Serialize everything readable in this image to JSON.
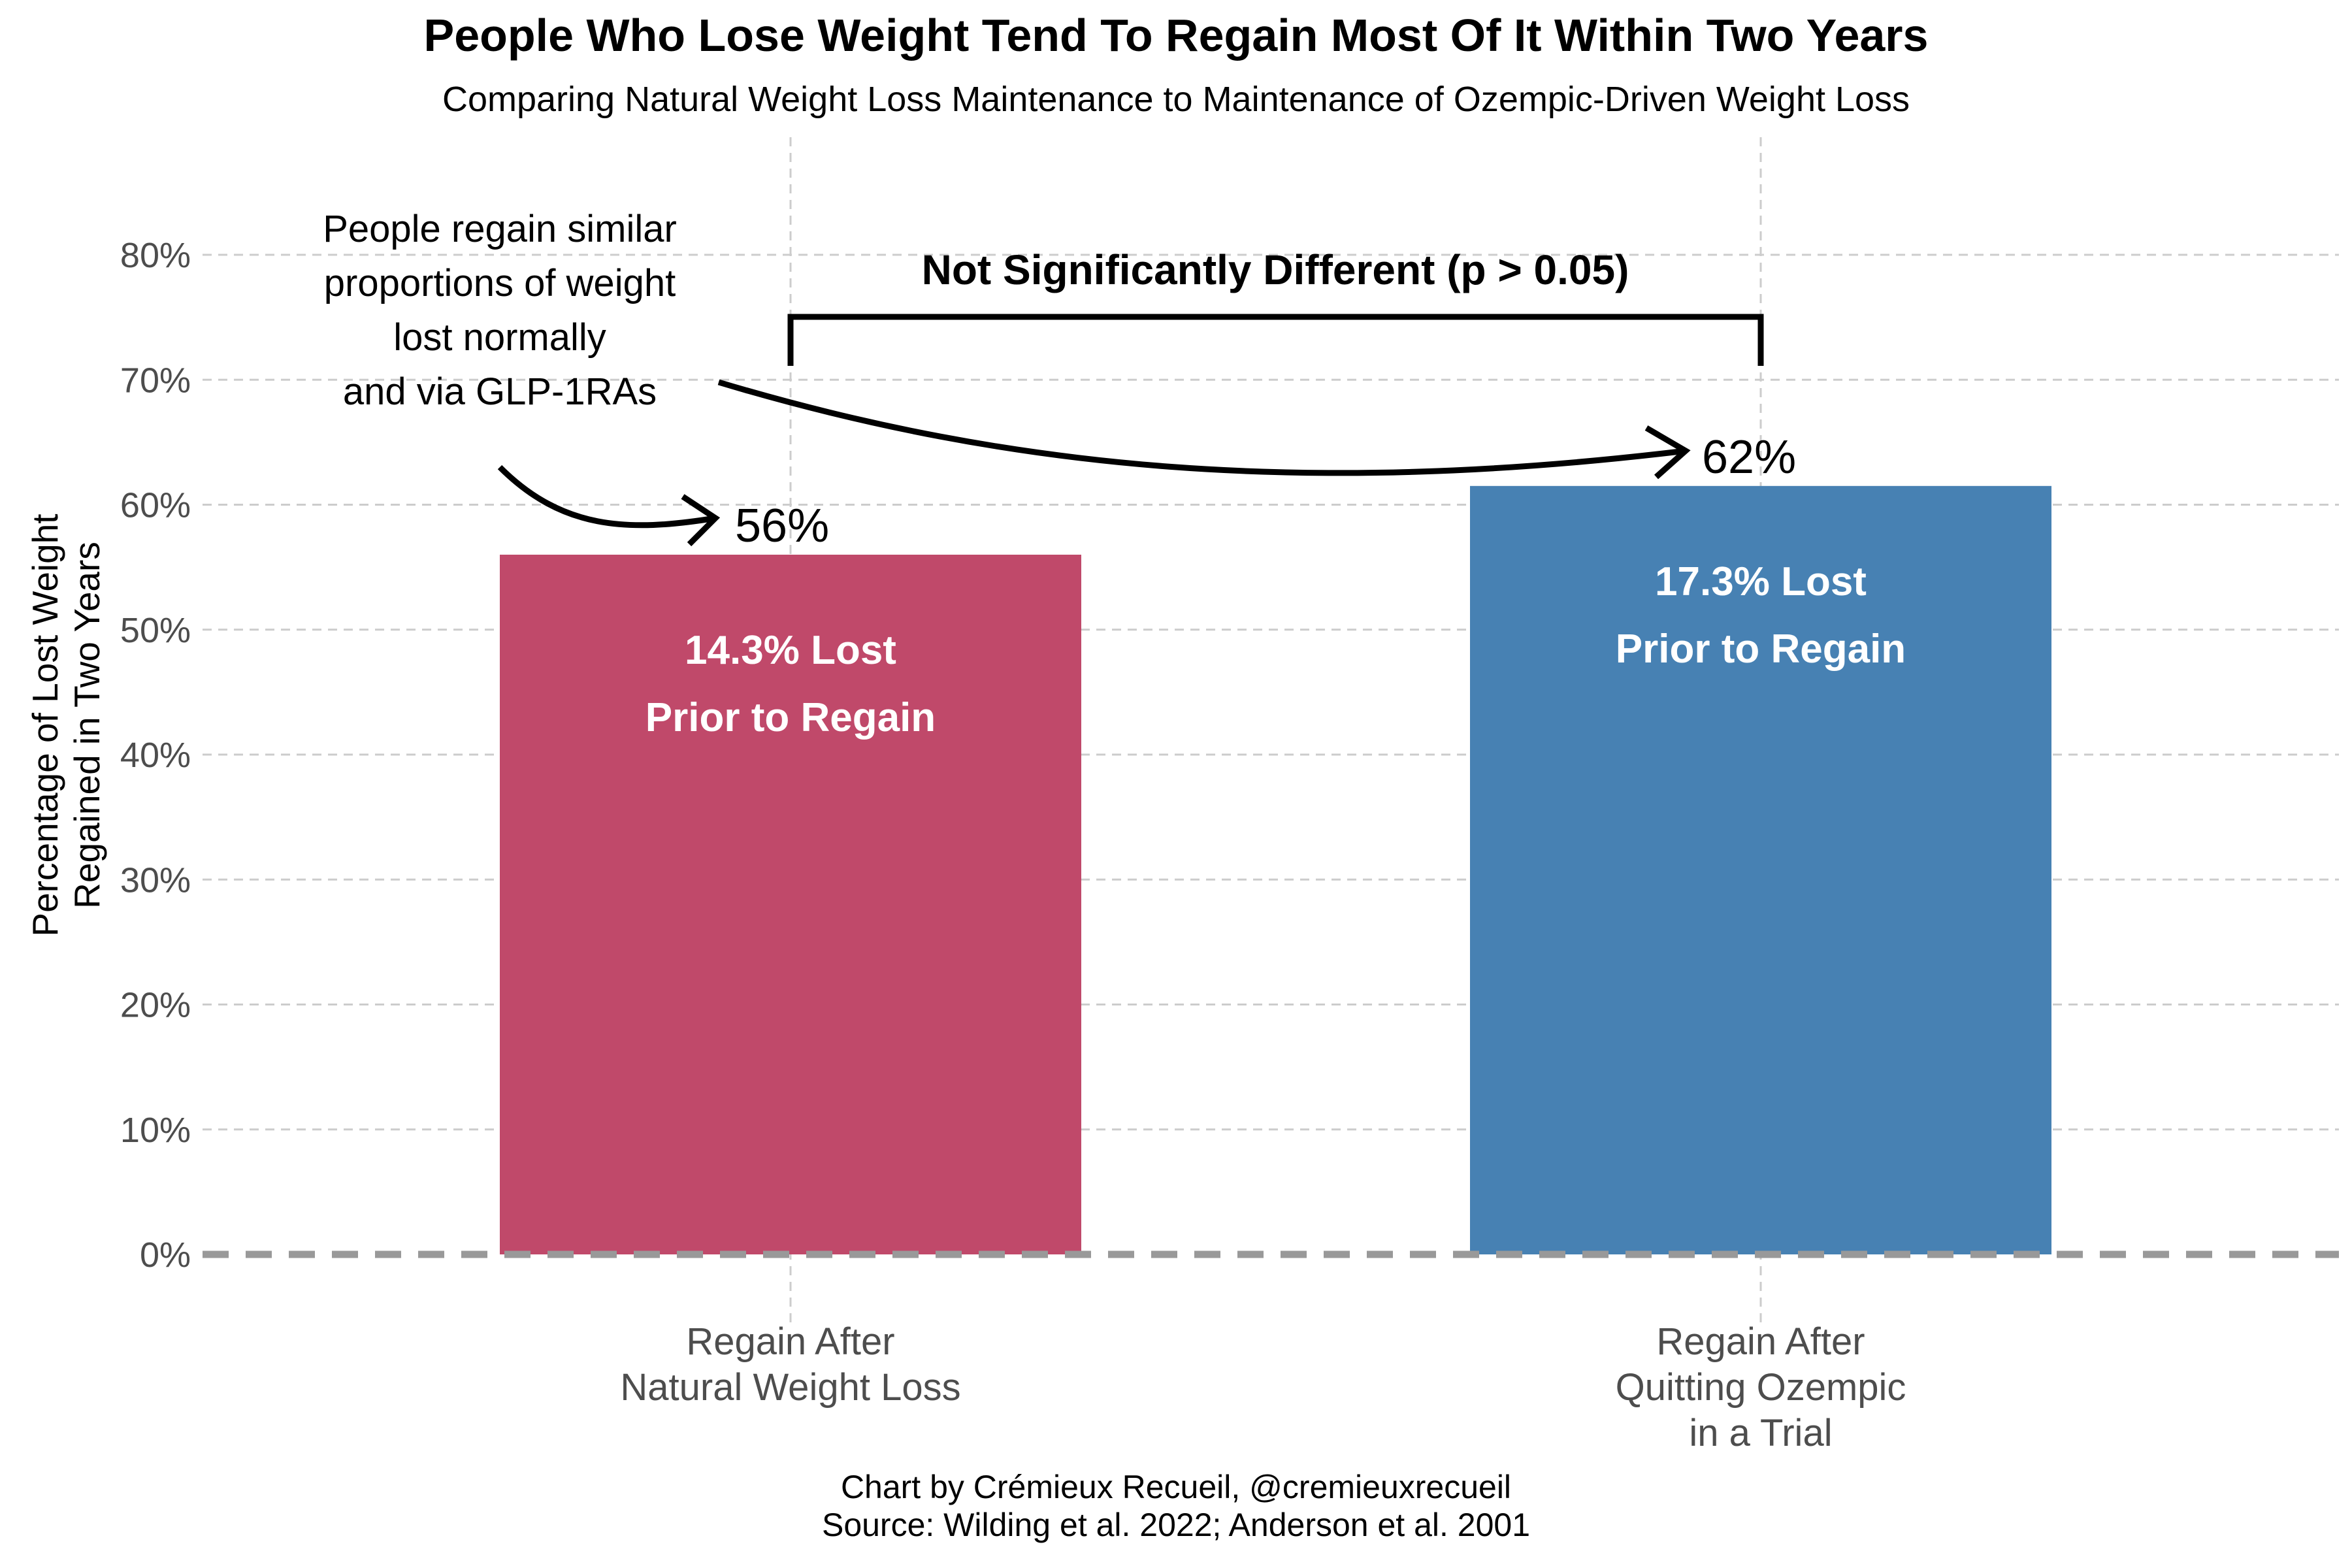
{
  "chart_data": {
    "type": "bar",
    "title": "People Who Lose Weight Tend To Regain Most Of It Within Two Years",
    "subtitle": "Comparing Natural Weight Loss Maintenance to Maintenance of Ozempic-Driven Weight Loss",
    "ylabel_lines": [
      "Percentage of Lost Weight",
      "Regained in Two Years"
    ],
    "xlabel": "",
    "ylim": [
      0,
      80
    ],
    "y_ticks": [
      0,
      10,
      20,
      30,
      40,
      50,
      60,
      70,
      80
    ],
    "y_tick_labels": [
      "0%",
      "10%",
      "20%",
      "30%",
      "40%",
      "50%",
      "60%",
      "70%",
      "80%"
    ],
    "grid": true,
    "baseline_style": "dashed",
    "categories": [
      {
        "lines": [
          "Regain After",
          "Natural Weight Loss"
        ]
      },
      {
        "lines": [
          "Regain After",
          "Quitting Ozempic",
          "in a Trial"
        ]
      }
    ],
    "values": [
      56,
      61.5
    ],
    "value_labels": [
      "56%",
      "62%"
    ],
    "bar_colors": [
      "#c0496a",
      "#4781b3"
    ],
    "inside_labels": [
      [
        "14.3% Lost",
        "Prior to Regain"
      ],
      [
        "17.3% Lost",
        "Prior to Regain"
      ]
    ],
    "annotations": {
      "note_lines": [
        "People regain similar",
        "proportions of weight",
        "lost normally",
        "and via GLP-1RAs"
      ],
      "bracket_label": "Not Significantly Different (p > 0.05)"
    },
    "caption_lines": [
      "Chart by Crémieux Recueil, @cremieuxrecueil",
      "Source: Wilding et al. 2022; Anderson et al. 2001"
    ]
  }
}
